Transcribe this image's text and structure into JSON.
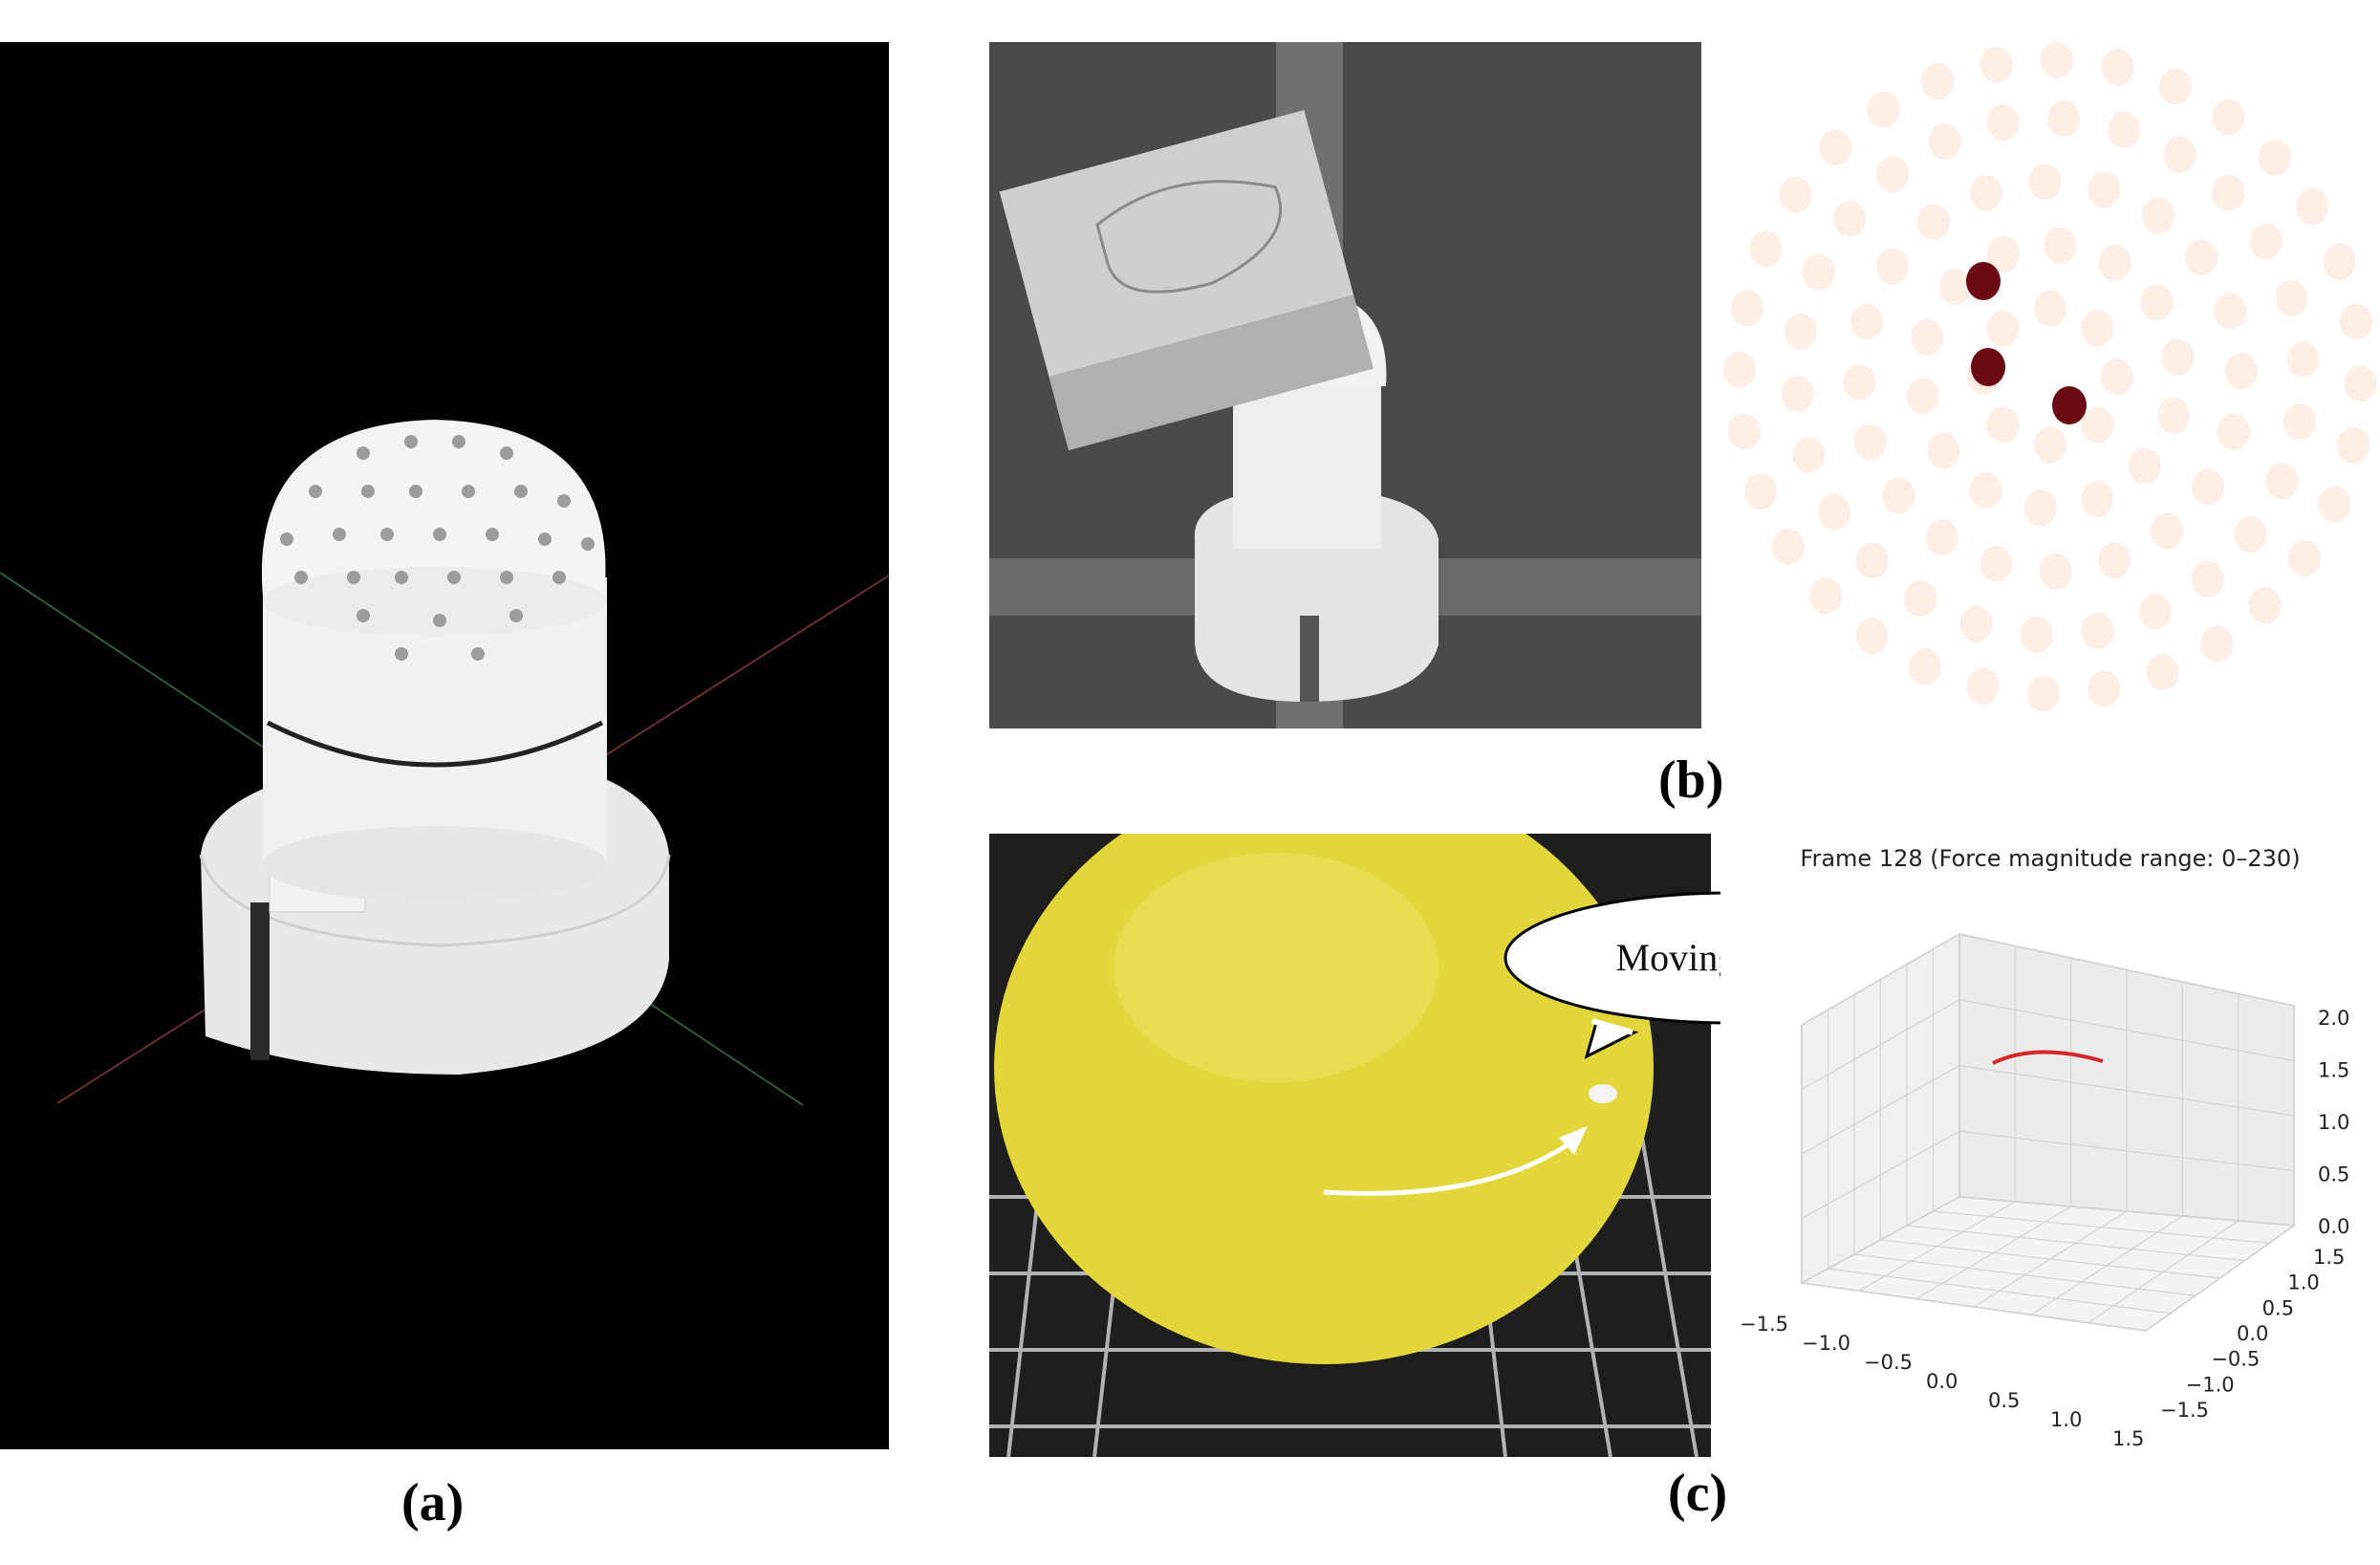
{
  "captions": {
    "a": "(a)",
    "b": "(b)",
    "c": "(c)"
  },
  "callout": {
    "text": "Moving sensor"
  },
  "plot3d": {
    "title": "Frame 128 (Force magnitude range: 0–230)",
    "x_ticks": [
      "−1.5",
      "−1.0",
      "−0.5",
      "0.0",
      "0.5",
      "1.0",
      "1.5"
    ],
    "y_ticks": [
      "1.5",
      "1.0",
      "0.5",
      "0.0",
      "−0.5",
      "−1.0",
      "−1.5"
    ],
    "z_ticks": [
      "2.0",
      "1.5",
      "1.0",
      "0.5",
      "0.0"
    ],
    "trajectory_color": "#d62728"
  },
  "colors": {
    "marker_idle": "#fdeee6",
    "marker_active": "#6b0a12",
    "sphere": "#e3d63a",
    "sensor_body": "#ececec"
  }
}
